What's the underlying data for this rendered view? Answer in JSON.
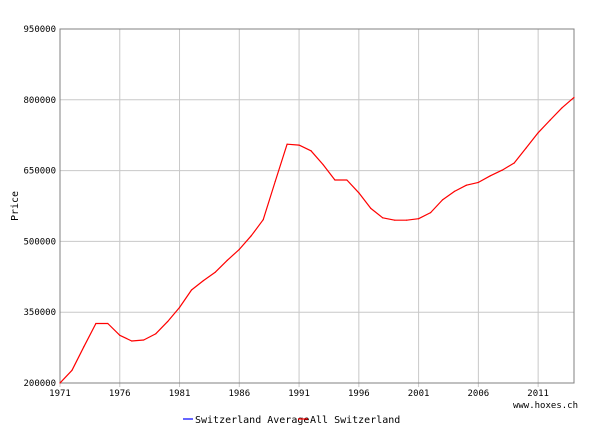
{
  "chart_data": {
    "type": "line",
    "ylabel": "Price",
    "xlabel": "",
    "watermark": "www.hoxes.ch",
    "ylim": [
      200000,
      950000
    ],
    "xlim": [
      1971,
      2014
    ],
    "y_ticks": [
      200000,
      350000,
      500000,
      650000,
      800000,
      950000
    ],
    "x_ticks": [
      1971,
      1976,
      1981,
      1986,
      1991,
      1996,
      2001,
      2006,
      2011
    ],
    "grid": "both",
    "legend_placement": "bottom",
    "series": [
      {
        "name": "Switzerland Average",
        "color": "#0000ff",
        "x": [],
        "values": []
      },
      {
        "name": "All Switzerland",
        "color": "#ff0000",
        "x": [
          1971,
          1972,
          1973,
          1974,
          1975,
          1976,
          1977,
          1978,
          1979,
          1980,
          1981,
          1982,
          1983,
          1984,
          1985,
          1986,
          1987,
          1988,
          1989,
          1990,
          1991,
          1992,
          1993,
          1994,
          1995,
          1996,
          1997,
          1998,
          1999,
          2000,
          2001,
          2002,
          2003,
          2004,
          2005,
          2006,
          2007,
          2008,
          2009,
          2010,
          2011,
          2012,
          2013,
          2014
        ],
        "values": [
          200000,
          227000,
          277000,
          326000,
          326000,
          301000,
          289000,
          291000,
          304000,
          330000,
          360000,
          397000,
          417000,
          435000,
          460000,
          483000,
          512000,
          546000,
          627000,
          706000,
          704000,
          692000,
          663000,
          630000,
          630000,
          603000,
          570000,
          550000,
          545000,
          545000,
          548000,
          561000,
          588000,
          606000,
          619000,
          625000,
          639000,
          651000,
          666000,
          698000,
          730000,
          757000,
          783000,
          805000
        ]
      }
    ]
  }
}
